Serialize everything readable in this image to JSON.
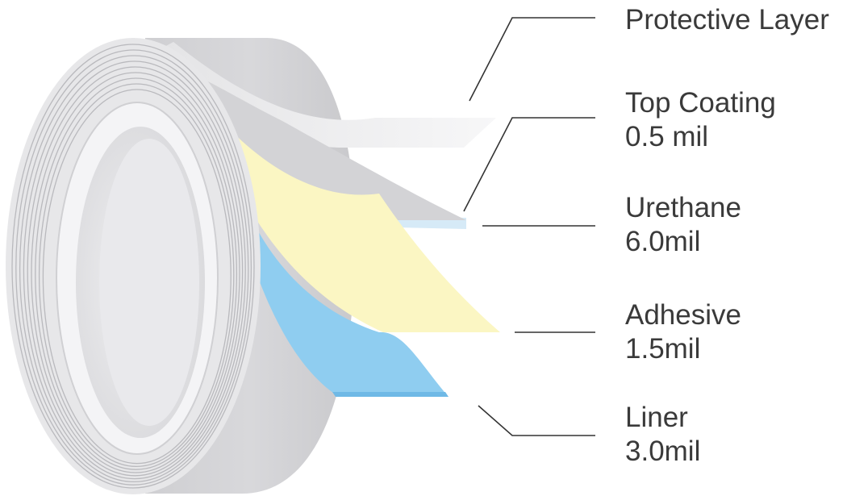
{
  "layers": [
    {
      "id": "protective",
      "name": "Protective Layer",
      "thickness": "",
      "color": "#f2f2f4"
    },
    {
      "id": "top-coating",
      "name": "Top Coating",
      "thickness": "0.5 mil",
      "color": "#d6eaf7"
    },
    {
      "id": "urethane",
      "name": "Urethane",
      "thickness": "6.0mil",
      "color": "#dcdcdf"
    },
    {
      "id": "adhesive",
      "name": "Adhesive",
      "thickness": "1.5mil",
      "color": "#fbf6c3"
    },
    {
      "id": "liner",
      "name": "Liner",
      "thickness": "3.0mil",
      "color": "#8fcdf0"
    }
  ],
  "colors": {
    "label_text": "#3a3a3a",
    "leader_line": "#333333",
    "roll_body": "#d7d7da",
    "roll_face": "#e7e7e9",
    "roll_core": "#e3e3e6"
  }
}
